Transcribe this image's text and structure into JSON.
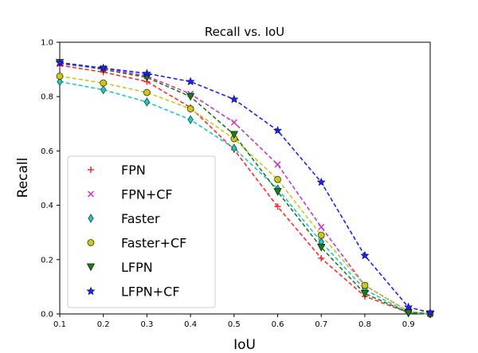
{
  "chart_data": {
    "type": "line",
    "title": "Recall vs. IoU",
    "xlabel": "IoU",
    "ylabel": "Recall",
    "xlim": [
      0.1,
      0.95
    ],
    "ylim": [
      0.0,
      1.0
    ],
    "x_ticks": [
      "0.1",
      "0.2",
      "0.3",
      "0.4",
      "0.5",
      "0.6",
      "0.7",
      "0.8",
      "0.9"
    ],
    "y_ticks": [
      "0.0",
      "0.2",
      "0.4",
      "0.6",
      "0.8",
      "1.0"
    ],
    "legend_position": "lower-left",
    "x": [
      0.1,
      0.2,
      0.3,
      0.4,
      0.5,
      0.6,
      0.7,
      0.8,
      0.9,
      0.95
    ],
    "series": [
      {
        "name": "FPN",
        "color": "#ff2a2a",
        "marker": "plus",
        "values": [
          0.915,
          0.89,
          0.855,
          0.76,
          0.605,
          0.395,
          0.205,
          0.065,
          0.005,
          0.0
        ]
      },
      {
        "name": "FPN+CF",
        "color": "#cc33cc",
        "marker": "x",
        "values": [
          0.92,
          0.905,
          0.875,
          0.81,
          0.705,
          0.55,
          0.32,
          0.105,
          0.01,
          0.0
        ]
      },
      {
        "name": "Faster",
        "color": "#1ec8c8",
        "marker": "diamond",
        "values": [
          0.855,
          0.825,
          0.78,
          0.715,
          0.61,
          0.46,
          0.265,
          0.09,
          0.005,
          0.0
        ]
      },
      {
        "name": "Faster+CF",
        "color": "#c8c81e",
        "marker": "circle",
        "values": [
          0.875,
          0.85,
          0.815,
          0.755,
          0.645,
          0.495,
          0.29,
          0.105,
          0.01,
          0.0
        ]
      },
      {
        "name": "LFPN",
        "color": "#1e7a1e",
        "marker": "triangle-down",
        "values": [
          0.925,
          0.9,
          0.87,
          0.8,
          0.66,
          0.45,
          0.245,
          0.075,
          0.005,
          0.0
        ]
      },
      {
        "name": "LFPN+CF",
        "color": "#1e1eff",
        "marker": "star",
        "values": [
          0.925,
          0.905,
          0.885,
          0.855,
          0.79,
          0.675,
          0.485,
          0.215,
          0.025,
          0.005
        ]
      }
    ]
  }
}
